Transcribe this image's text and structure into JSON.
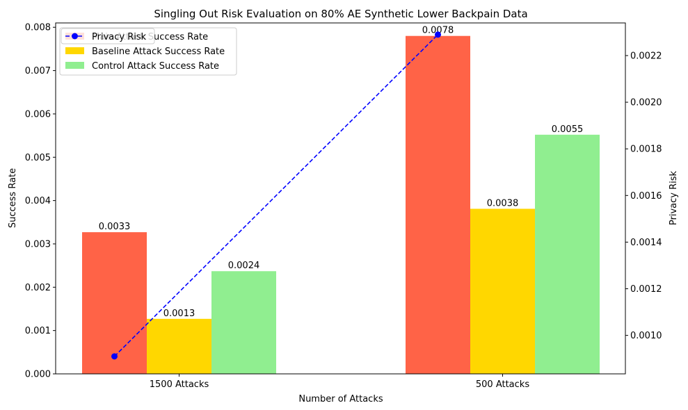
{
  "chart_data": {
    "type": "bar",
    "title": "Singling Out Risk Evaluation on 80% AE Synthetic Lower Backpain Data",
    "xlabel": "Number of Attacks",
    "ylabel": "Success Rate",
    "y2label": "Privacy Risk",
    "categories": [
      "1500 Attacks",
      "500 Attacks"
    ],
    "ylim": [
      0,
      0.0081
    ],
    "y2lim": [
      0.000835,
      0.00234
    ],
    "yticks": [
      "0.000",
      "0.001",
      "0.002",
      "0.003",
      "0.004",
      "0.005",
      "0.006",
      "0.007",
      "0.008"
    ],
    "y2ticks": [
      "0.0010",
      "0.0012",
      "0.0014",
      "0.0016",
      "0.0018",
      "0.0020",
      "0.0022"
    ],
    "series": [
      {
        "name": "Main Attack Success Rate",
        "color": "#ff6347",
        "values": [
          0.00327,
          0.0078
        ],
        "labels": [
          "0.0033",
          "0.0078"
        ]
      },
      {
        "name": "Baseline Attack Success Rate",
        "color": "#ffd700",
        "values": [
          0.00127,
          0.00381
        ],
        "labels": [
          "0.0013",
          "0.0038"
        ]
      },
      {
        "name": "Control Attack Success Rate",
        "color": "#90ee90",
        "values": [
          0.00237,
          0.00552
        ],
        "labels": [
          "0.0024",
          "0.0055"
        ]
      }
    ],
    "line_series": {
      "name": "Privacy Risk",
      "color": "#0000ff",
      "style": "dashed",
      "axis": "right",
      "values": [
        0.00091,
        0.00229
      ]
    },
    "legend": {
      "placement": "top-left",
      "entries": [
        "Privacy Risk",
        "Main Attack Success Rate",
        "Baseline Attack Success Rate",
        "Control Attack Success Rate"
      ]
    },
    "grid": false
  }
}
